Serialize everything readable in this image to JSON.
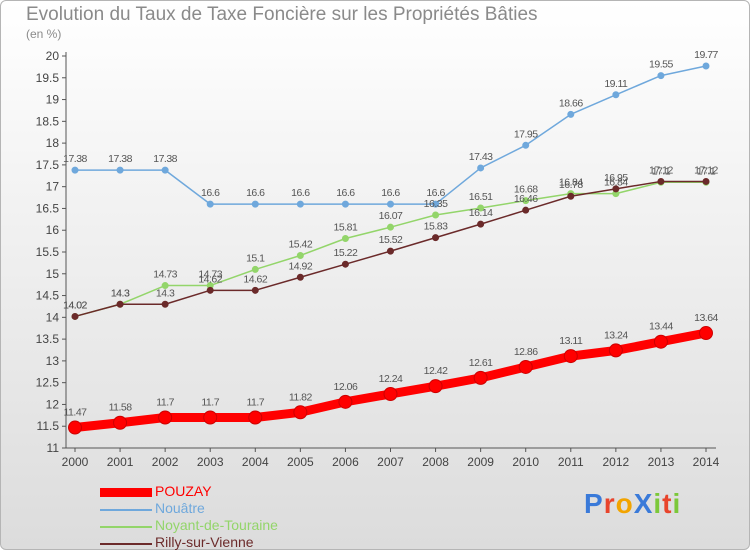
{
  "title": "Evolution du Taux de Taxe Foncière sur les Propriétés Bâties",
  "subtitle": "(en %)",
  "logo": {
    "text": "ProXiti",
    "colors": [
      "#3a7ad9",
      "#e8442c",
      "#f2a400",
      "#3a7ad9",
      "#7cc83a",
      "#e8442c",
      "#7cc83a"
    ]
  },
  "chart_data": {
    "type": "line",
    "title": "Evolution du Taux de Taxe Foncière sur les Propriétés Bâties",
    "ylabel": "(en %)",
    "xlabel": "",
    "ylim": [
      11,
      20
    ],
    "ytick_labels": [
      "11",
      "11.5",
      "12",
      "12.5",
      "13",
      "13.5",
      "14",
      "14.5",
      "15",
      "15.5",
      "16",
      "16.5",
      "17",
      "17.5",
      "18",
      "18.5",
      "19",
      "19.5",
      "20"
    ],
    "x": [
      "2000",
      "2001",
      "2002",
      "2003",
      "2004",
      "2005",
      "2006",
      "2007",
      "2008",
      "2009",
      "2010",
      "2011",
      "2012",
      "2013",
      "2014"
    ],
    "grid": false,
    "legend_position": "bottom-left",
    "series": [
      {
        "name": "POUZAY",
        "color": "#ff0000",
        "width": 9,
        "values": [
          11.47,
          11.58,
          11.7,
          11.7,
          11.7,
          11.82,
          12.06,
          12.24,
          12.42,
          12.61,
          12.86,
          13.11,
          13.24,
          13.44,
          13.64
        ],
        "labels": [
          "11.47",
          "11.58",
          "11.7",
          "11.7",
          "11.7",
          "11.82",
          "12.06",
          "12.24",
          "12.42",
          "12.61",
          "12.86",
          "13.11",
          "13.24",
          "13.44",
          "13.64"
        ]
      },
      {
        "name": "Nouâtre",
        "color": "#6fa8dc",
        "width": 1.5,
        "values": [
          17.38,
          17.38,
          17.38,
          16.6,
          16.6,
          16.6,
          16.6,
          16.6,
          16.6,
          17.43,
          17.95,
          18.66,
          19.11,
          19.55,
          19.77
        ],
        "labels": [
          "17.38",
          "17.38",
          "17.38",
          "16.6",
          "16.6",
          "16.6",
          "16.6",
          "16.6",
          "16.6",
          "17.43",
          "17.95",
          "18.66",
          "19.11",
          "19.55",
          "19.77"
        ]
      },
      {
        "name": "Noyant-de-Touraine",
        "color": "#93d56a",
        "width": 1.5,
        "values": [
          14.02,
          14.3,
          14.73,
          14.73,
          15.1,
          15.42,
          15.81,
          16.07,
          16.35,
          16.51,
          16.68,
          16.84,
          16.84,
          17.1,
          17.1
        ],
        "labels": [
          "14.02",
          "14.3",
          "14.73",
          "14.73",
          "15.1",
          "15.42",
          "15.81",
          "16.07",
          "16.35",
          "16.51",
          "16.68",
          "16.84",
          "16.84",
          "17.1",
          "17.1"
        ]
      },
      {
        "name": "Rilly-sur-Vienne",
        "color": "#6b2a2a",
        "width": 1.5,
        "values": [
          14.02,
          14.3,
          14.3,
          14.62,
          14.62,
          14.92,
          15.22,
          15.52,
          15.83,
          16.14,
          16.46,
          16.78,
          16.95,
          17.12,
          17.12
        ],
        "labels": [
          "14.02",
          "14.3",
          "14.3",
          "14.62",
          "14.62",
          "14.92",
          "15.22",
          "15.52",
          "15.83",
          "16.14",
          "16.46",
          "16.78",
          "16.95",
          "17.12",
          "17.12"
        ]
      }
    ]
  }
}
